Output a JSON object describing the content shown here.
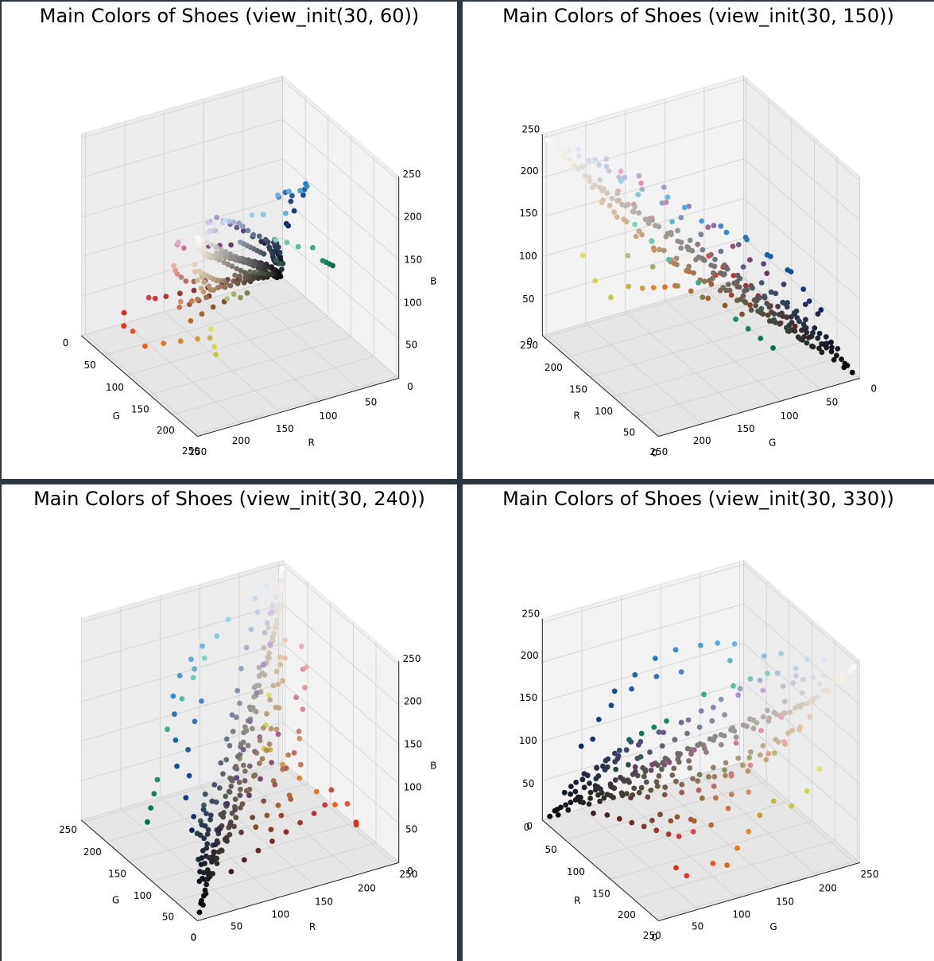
{
  "chart_data": [
    {
      "type": "scatter3d",
      "title": "Main Colors of Shoes (view_init(30, 60))",
      "elev": 30,
      "azim": 60,
      "xlabel": "R",
      "ylabel": "G",
      "zlabel": "B",
      "xlim": [
        0,
        255
      ],
      "ylim": [
        0,
        255
      ],
      "zlim": [
        0,
        255
      ],
      "xticks": [
        50,
        100,
        150,
        200,
        250
      ],
      "yticks": [
        0,
        50,
        100,
        150,
        200,
        250
      ],
      "zticks": [
        0,
        50,
        100,
        150,
        200,
        250
      ],
      "point_color": "rgb(R,G,B) of each point",
      "grid": true
    },
    {
      "type": "scatter3d",
      "title": "Main Colors of Shoes (view_init(30, 150))",
      "elev": 30,
      "azim": 150,
      "xlabel": "R",
      "ylabel": "G",
      "zlabel": "",
      "xlim": [
        0,
        255
      ],
      "ylim": [
        0,
        255
      ],
      "zlim": [
        0,
        255
      ],
      "xticks": [
        0,
        50,
        100,
        150,
        200,
        250
      ],
      "yticks": [
        0,
        50,
        100,
        150,
        200,
        250
      ],
      "zticks": [
        0,
        50,
        100,
        150,
        200,
        250
      ],
      "point_color": "rgb(R,G,B) of each point",
      "grid": true
    },
    {
      "type": "scatter3d",
      "title": "Main Colors of Shoes (view_init(30, 240))",
      "elev": 30,
      "azim": 240,
      "xlabel": "R",
      "ylabel": "G",
      "zlabel": "B",
      "xlim": [
        0,
        255
      ],
      "ylim": [
        0,
        255
      ],
      "zlim": [
        0,
        255
      ],
      "xticks": [
        0,
        50,
        100,
        150,
        200,
        250
      ],
      "yticks": [
        0,
        50,
        100,
        150,
        200,
        250
      ],
      "zticks": [
        0,
        50,
        100,
        150,
        200,
        250
      ],
      "point_color": "rgb(R,G,B) of each point",
      "grid": true
    },
    {
      "type": "scatter3d",
      "title": "Main Colors of Shoes (view_init(30, 330))",
      "elev": 30,
      "azim": 330,
      "xlabel": "R",
      "ylabel": "G",
      "zlabel": "",
      "xlim": [
        0,
        255
      ],
      "ylim": [
        0,
        255
      ],
      "zlim": [
        0,
        255
      ],
      "xticks": [
        0,
        50,
        100,
        150,
        200,
        250
      ],
      "yticks": [
        0,
        50,
        100,
        150,
        200,
        250
      ],
      "zticks": [
        0,
        50,
        100,
        150,
        200,
        250
      ],
      "point_color": "rgb(R,G,B) of each point",
      "grid": true
    }
  ],
  "points": [
    [
      248,
      246,
      242
    ],
    [
      240,
      236,
      228
    ],
    [
      232,
      226,
      216
    ],
    [
      222,
      214,
      200
    ],
    [
      212,
      204,
      190
    ],
    [
      204,
      196,
      182
    ],
    [
      196,
      188,
      176
    ],
    [
      186,
      180,
      170
    ],
    [
      176,
      170,
      162
    ],
    [
      168,
      162,
      156
    ],
    [
      158,
      152,
      148
    ],
    [
      150,
      144,
      140
    ],
    [
      140,
      136,
      132
    ],
    [
      132,
      128,
      124
    ],
    [
      122,
      118,
      116
    ],
    [
      112,
      108,
      106
    ],
    [
      102,
      100,
      98
    ],
    [
      94,
      92,
      90
    ],
    [
      84,
      82,
      82
    ],
    [
      74,
      72,
      74
    ],
    [
      66,
      64,
      66
    ],
    [
      56,
      54,
      58
    ],
    [
      48,
      46,
      50
    ],
    [
      40,
      38,
      44
    ],
    [
      32,
      30,
      36
    ],
    [
      24,
      22,
      28
    ],
    [
      16,
      14,
      20
    ],
    [
      10,
      10,
      14
    ],
    [
      250,
      248,
      246
    ],
    [
      236,
      232,
      226
    ],
    [
      226,
      218,
      206
    ],
    [
      214,
      206,
      194
    ],
    [
      200,
      192,
      180
    ],
    [
      192,
      186,
      176
    ],
    [
      180,
      176,
      170
    ],
    [
      164,
      160,
      156
    ],
    [
      146,
      142,
      140
    ],
    [
      128,
      126,
      124
    ],
    [
      110,
      108,
      108
    ],
    [
      92,
      90,
      92
    ],
    [
      76,
      74,
      78
    ],
    [
      60,
      58,
      64
    ],
    [
      44,
      42,
      48
    ],
    [
      28,
      26,
      32
    ],
    [
      20,
      18,
      24
    ],
    [
      12,
      12,
      16
    ],
    [
      244,
      240,
      234
    ],
    [
      230,
      224,
      214
    ],
    [
      218,
      210,
      196
    ],
    [
      208,
      200,
      188
    ],
    [
      190,
      184,
      178
    ],
    [
      172,
      168,
      164
    ],
    [
      154,
      150,
      148
    ],
    [
      136,
      134,
      132
    ],
    [
      118,
      116,
      116
    ],
    [
      100,
      98,
      100
    ],
    [
      82,
      80,
      84
    ],
    [
      64,
      62,
      68
    ],
    [
      46,
      44,
      52
    ],
    [
      30,
      28,
      36
    ],
    [
      52,
      48,
      40
    ],
    [
      62,
      54,
      44
    ],
    [
      80,
      68,
      52
    ],
    [
      96,
      82,
      62
    ],
    [
      110,
      92,
      70
    ],
    [
      126,
      104,
      78
    ],
    [
      140,
      116,
      86
    ],
    [
      156,
      128,
      96
    ],
    [
      172,
      140,
      104
    ],
    [
      188,
      152,
      112
    ],
    [
      200,
      168,
      128
    ],
    [
      214,
      184,
      150
    ],
    [
      224,
      196,
      170
    ],
    [
      230,
      206,
      186
    ],
    [
      56,
      50,
      46
    ],
    [
      72,
      60,
      50
    ],
    [
      88,
      72,
      58
    ],
    [
      104,
      86,
      70
    ],
    [
      120,
      100,
      80
    ],
    [
      136,
      112,
      88
    ],
    [
      150,
      124,
      94
    ],
    [
      166,
      136,
      100
    ],
    [
      180,
      150,
      116
    ],
    [
      194,
      164,
      132
    ],
    [
      206,
      180,
      150
    ],
    [
      216,
      192,
      166
    ],
    [
      34,
      40,
      52
    ],
    [
      40,
      48,
      62
    ],
    [
      46,
      56,
      74
    ],
    [
      54,
      64,
      86
    ],
    [
      60,
      72,
      98
    ],
    [
      70,
      84,
      110
    ],
    [
      86,
      98,
      126
    ],
    [
      104,
      116,
      142
    ],
    [
      120,
      132,
      160
    ],
    [
      136,
      148,
      178
    ],
    [
      150,
      164,
      194
    ],
    [
      166,
      180,
      208
    ],
    [
      180,
      194,
      220
    ],
    [
      196,
      208,
      230
    ],
    [
      30,
      36,
      46
    ],
    [
      38,
      46,
      58
    ],
    [
      44,
      54,
      70
    ],
    [
      52,
      62,
      82
    ],
    [
      24,
      28,
      40
    ],
    [
      20,
      24,
      36
    ],
    [
      40,
      60,
      80
    ],
    [
      48,
      70,
      92
    ],
    [
      56,
      80,
      104
    ],
    [
      36,
      56,
      70
    ],
    [
      40,
      70,
      64
    ],
    [
      50,
      80,
      72
    ],
    [
      30,
      50,
      44
    ],
    [
      60,
      90,
      84
    ],
    [
      90,
      60,
      56
    ],
    [
      110,
      70,
      64
    ],
    [
      130,
      80,
      74
    ],
    [
      150,
      90,
      84
    ],
    [
      170,
      100,
      94
    ],
    [
      186,
      110,
      104
    ],
    [
      200,
      124,
      120
    ],
    [
      214,
      140,
      136
    ],
    [
      226,
      156,
      152
    ],
    [
      236,
      170,
      168
    ],
    [
      60,
      30,
      30
    ],
    [
      80,
      36,
      36
    ],
    [
      100,
      40,
      40
    ],
    [
      120,
      44,
      44
    ],
    [
      140,
      48,
      48
    ],
    [
      160,
      52,
      52
    ],
    [
      180,
      56,
      56
    ],
    [
      196,
      60,
      60
    ],
    [
      210,
      70,
      70
    ],
    [
      224,
      40,
      40
    ],
    [
      230,
      50,
      30
    ],
    [
      236,
      80,
      40
    ],
    [
      232,
      100,
      30
    ],
    [
      220,
      120,
      40
    ],
    [
      210,
      140,
      50
    ],
    [
      200,
      160,
      60
    ],
    [
      196,
      180,
      70
    ],
    [
      200,
      200,
      60
    ],
    [
      210,
      214,
      80
    ],
    [
      220,
      224,
      110
    ],
    [
      180,
      190,
      120
    ],
    [
      160,
      170,
      110
    ],
    [
      140,
      150,
      90
    ],
    [
      120,
      130,
      80
    ],
    [
      160,
      100,
      50
    ],
    [
      140,
      90,
      48
    ],
    [
      120,
      80,
      44
    ],
    [
      180,
      110,
      52
    ],
    [
      170,
      90,
      60
    ],
    [
      150,
      76,
      52
    ],
    [
      130,
      64,
      46
    ],
    [
      200,
      120,
      80
    ],
    [
      210,
      140,
      100
    ],
    [
      190,
      130,
      90
    ],
    [
      176,
      118,
      82
    ],
    [
      160,
      110,
      76
    ],
    [
      20,
      80,
      150
    ],
    [
      30,
      100,
      170
    ],
    [
      40,
      120,
      190
    ],
    [
      50,
      140,
      200
    ],
    [
      70,
      160,
      210
    ],
    [
      90,
      170,
      220
    ],
    [
      110,
      180,
      226
    ],
    [
      20,
      60,
      120
    ],
    [
      30,
      70,
      140
    ],
    [
      24,
      50,
      100
    ],
    [
      16,
      40,
      90
    ],
    [
      40,
      90,
      160
    ],
    [
      60,
      110,
      180
    ],
    [
      80,
      130,
      190
    ],
    [
      0,
      110,
      70
    ],
    [
      10,
      120,
      80
    ],
    [
      20,
      130,
      90
    ],
    [
      30,
      140,
      100
    ],
    [
      60,
      170,
      140
    ],
    [
      90,
      190,
      160
    ],
    [
      110,
      200,
      176
    ],
    [
      130,
      210,
      190
    ],
    [
      100,
      180,
      200
    ],
    [
      140,
      200,
      220
    ],
    [
      160,
      210,
      230
    ],
    [
      200,
      220,
      240
    ],
    [
      220,
      230,
      246
    ],
    [
      210,
      200,
      230
    ],
    [
      190,
      170,
      210
    ],
    [
      170,
      150,
      200
    ],
    [
      150,
      130,
      180
    ],
    [
      130,
      110,
      160
    ],
    [
      110,
      90,
      140
    ],
    [
      90,
      70,
      120
    ],
    [
      70,
      56,
      100
    ],
    [
      50,
      40,
      80
    ],
    [
      40,
      30,
      70
    ],
    [
      100,
      60,
      100
    ],
    [
      120,
      70,
      110
    ],
    [
      140,
      80,
      120
    ],
    [
      160,
      100,
      140
    ],
    [
      200,
      130,
      160
    ],
    [
      220,
      150,
      180
    ],
    [
      230,
      170,
      196
    ],
    [
      80,
      70,
      60
    ],
    [
      70,
      60,
      52
    ],
    [
      60,
      52,
      46
    ],
    [
      90,
      80,
      70
    ],
    [
      100,
      90,
      80
    ],
    [
      112,
      102,
      92
    ],
    [
      124,
      114,
      104
    ],
    [
      138,
      128,
      118
    ],
    [
      150,
      140,
      130
    ],
    [
      162,
      152,
      142
    ],
    [
      176,
      166,
      156
    ],
    [
      188,
      178,
      168
    ],
    [
      200,
      190,
      180
    ],
    [
      212,
      202,
      192
    ],
    [
      224,
      214,
      204
    ],
    [
      236,
      226,
      216
    ],
    [
      244,
      238,
      230
    ],
    [
      252,
      250,
      248
    ],
    [
      238,
      236,
      234
    ],
    [
      224,
      222,
      220
    ],
    [
      210,
      208,
      206
    ],
    [
      196,
      194,
      192
    ],
    [
      182,
      180,
      178
    ],
    [
      168,
      166,
      164
    ],
    [
      154,
      152,
      150
    ],
    [
      140,
      138,
      136
    ],
    [
      126,
      124,
      122
    ],
    [
      112,
      110,
      108
    ],
    [
      98,
      96,
      94
    ],
    [
      84,
      82,
      80
    ],
    [
      70,
      68,
      66
    ],
    [
      58,
      56,
      54
    ],
    [
      46,
      44,
      42
    ],
    [
      34,
      32,
      30
    ],
    [
      22,
      20,
      18
    ],
    [
      14,
      12,
      10
    ],
    [
      6,
      6,
      6
    ],
    [
      28,
      32,
      28
    ],
    [
      36,
      40,
      34
    ],
    [
      44,
      50,
      42
    ],
    [
      54,
      60,
      50
    ],
    [
      66,
      72,
      60
    ],
    [
      78,
      84,
      70
    ],
    [
      92,
      98,
      82
    ],
    [
      106,
      112,
      94
    ],
    [
      40,
      36,
      30
    ],
    [
      50,
      44,
      36
    ],
    [
      62,
      54,
      44
    ],
    [
      74,
      64,
      52
    ],
    [
      86,
      76,
      62
    ],
    [
      98,
      88,
      72
    ],
    [
      112,
      100,
      84
    ],
    [
      126,
      114,
      96
    ],
    [
      64,
      50,
      60
    ],
    [
      76,
      60,
      70
    ],
    [
      88,
      70,
      80
    ],
    [
      100,
      80,
      90
    ],
    [
      112,
      90,
      100
    ],
    [
      124,
      100,
      110
    ],
    [
      136,
      110,
      120
    ],
    [
      148,
      120,
      130
    ],
    [
      30,
      40,
      60
    ],
    [
      36,
      48,
      70
    ],
    [
      42,
      56,
      80
    ],
    [
      48,
      64,
      90
    ],
    [
      22,
      30,
      50
    ],
    [
      18,
      26,
      44
    ],
    [
      14,
      20,
      36
    ],
    [
      26,
      36,
      54
    ],
    [
      190,
      170,
      140
    ],
    [
      200,
      180,
      150
    ],
    [
      210,
      190,
      160
    ],
    [
      220,
      200,
      170
    ],
    [
      180,
      160,
      130
    ],
    [
      170,
      150,
      120
    ],
    [
      160,
      140,
      112
    ],
    [
      150,
      130,
      104
    ],
    [
      236,
      232,
      236
    ],
    [
      228,
      224,
      232
    ],
    [
      220,
      216,
      228
    ],
    [
      212,
      208,
      224
    ],
    [
      204,
      200,
      218
    ],
    [
      196,
      192,
      212
    ],
    [
      70,
      80,
      90
    ],
    [
      80,
      90,
      100
    ],
    [
      90,
      100,
      110
    ],
    [
      100,
      110,
      120
    ],
    [
      110,
      120,
      130
    ],
    [
      120,
      130,
      140
    ],
    [
      130,
      140,
      150
    ],
    [
      140,
      150,
      160
    ]
  ]
}
